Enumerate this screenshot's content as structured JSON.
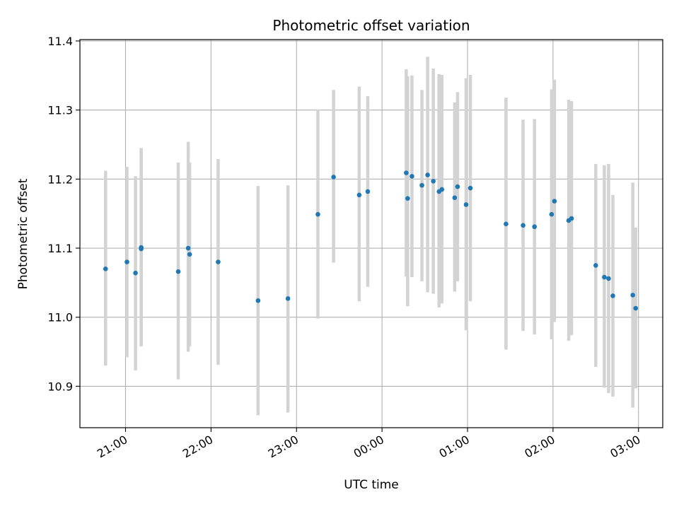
{
  "chart_data": {
    "type": "scatter",
    "title": "Photometric offset variation",
    "xlabel": "UTC time",
    "ylabel": "Photometric offset",
    "x_ticks": [
      "21:00",
      "22:00",
      "23:00",
      "00:00",
      "01:00",
      "02:00",
      "03:00"
    ],
    "y_ticks": [
      "10.9",
      "11.0",
      "11.1",
      "11.2",
      "11.3",
      "11.4"
    ],
    "xlim": [
      "20:28",
      "03:17"
    ],
    "ylim": [
      10.84,
      11.402
    ],
    "grid": true,
    "marker_color": "#1f77b4",
    "errorbar_color": "#d3d3d3",
    "series": [
      {
        "points": [
          {
            "x": "20:46",
            "y": 11.07,
            "low": 10.93,
            "high": 11.212
          },
          {
            "x": "21:01",
            "y": 11.08,
            "low": 10.942,
            "high": 11.218
          },
          {
            "x": "21:07",
            "y": 11.064,
            "low": 10.923,
            "high": 11.204
          },
          {
            "x": "21:11",
            "y": 11.099,
            "low": 10.958,
            "high": 11.245
          },
          {
            "x": "21:11",
            "y": 11.101,
            "low": 10.958,
            "high": 11.245
          },
          {
            "x": "21:37",
            "y": 11.066,
            "low": 10.91,
            "high": 11.224
          },
          {
            "x": "21:44",
            "y": 11.1,
            "low": 10.95,
            "high": 11.254
          },
          {
            "x": "21:45",
            "y": 11.091,
            "low": 10.958,
            "high": 11.224
          },
          {
            "x": "22:05",
            "y": 11.08,
            "low": 10.931,
            "high": 11.229
          },
          {
            "x": "22:33",
            "y": 11.024,
            "low": 10.858,
            "high": 11.19
          },
          {
            "x": "22:54",
            "y": 11.027,
            "low": 10.862,
            "high": 11.191
          },
          {
            "x": "23:15",
            "y": 11.149,
            "low": 10.998,
            "high": 11.301
          },
          {
            "x": "23:26",
            "y": 11.203,
            "low": 11.079,
            "high": 11.329
          },
          {
            "x": "23:44",
            "y": 11.177,
            "low": 11.023,
            "high": 11.334
          },
          {
            "x": "23:50",
            "y": 11.182,
            "low": 11.044,
            "high": 11.32
          },
          {
            "x": "00:17",
            "y": 11.209,
            "low": 11.059,
            "high": 11.359
          },
          {
            "x": "00:18",
            "y": 11.172,
            "low": 11.016,
            "high": 11.349
          },
          {
            "x": "00:21",
            "y": 11.204,
            "low": 11.058,
            "high": 11.35
          },
          {
            "x": "00:28",
            "y": 11.191,
            "low": 11.052,
            "high": 11.329
          },
          {
            "x": "00:32",
            "y": 11.206,
            "low": 11.036,
            "high": 11.377
          },
          {
            "x": "00:36",
            "y": 11.197,
            "low": 11.034,
            "high": 11.36
          },
          {
            "x": "00:40",
            "y": 11.182,
            "low": 11.014,
            "high": 11.352
          },
          {
            "x": "00:42",
            "y": 11.185,
            "low": 11.02,
            "high": 11.351
          },
          {
            "x": "00:51",
            "y": 11.173,
            "low": 11.037,
            "high": 11.311
          },
          {
            "x": "00:53",
            "y": 11.189,
            "low": 11.052,
            "high": 11.326
          },
          {
            "x": "00:59",
            "y": 11.163,
            "low": 10.981,
            "high": 11.346
          },
          {
            "x": "01:02",
            "y": 11.187,
            "low": 11.023,
            "high": 11.351
          },
          {
            "x": "01:27",
            "y": 11.135,
            "low": 10.953,
            "high": 11.318
          },
          {
            "x": "01:39",
            "y": 11.133,
            "low": 10.98,
            "high": 11.286
          },
          {
            "x": "01:47",
            "y": 11.131,
            "low": 10.975,
            "high": 11.287
          },
          {
            "x": "01:59",
            "y": 11.149,
            "low": 10.968,
            "high": 11.33
          },
          {
            "x": "02:01",
            "y": 11.168,
            "low": 10.993,
            "high": 11.344
          },
          {
            "x": "02:11",
            "y": 11.14,
            "low": 10.966,
            "high": 11.315
          },
          {
            "x": "02:13",
            "y": 11.143,
            "low": 10.974,
            "high": 11.313
          },
          {
            "x": "02:30",
            "y": 11.075,
            "low": 10.928,
            "high": 11.222
          },
          {
            "x": "02:36",
            "y": 11.058,
            "low": 10.898,
            "high": 11.22
          },
          {
            "x": "02:39",
            "y": 11.056,
            "low": 10.89,
            "high": 11.222
          },
          {
            "x": "02:42",
            "y": 11.031,
            "low": 10.885,
            "high": 11.177
          },
          {
            "x": "02:56",
            "y": 11.032,
            "low": 10.869,
            "high": 11.195
          },
          {
            "x": "02:58",
            "y": 11.013,
            "low": 10.897,
            "high": 11.13
          }
        ]
      }
    ]
  }
}
